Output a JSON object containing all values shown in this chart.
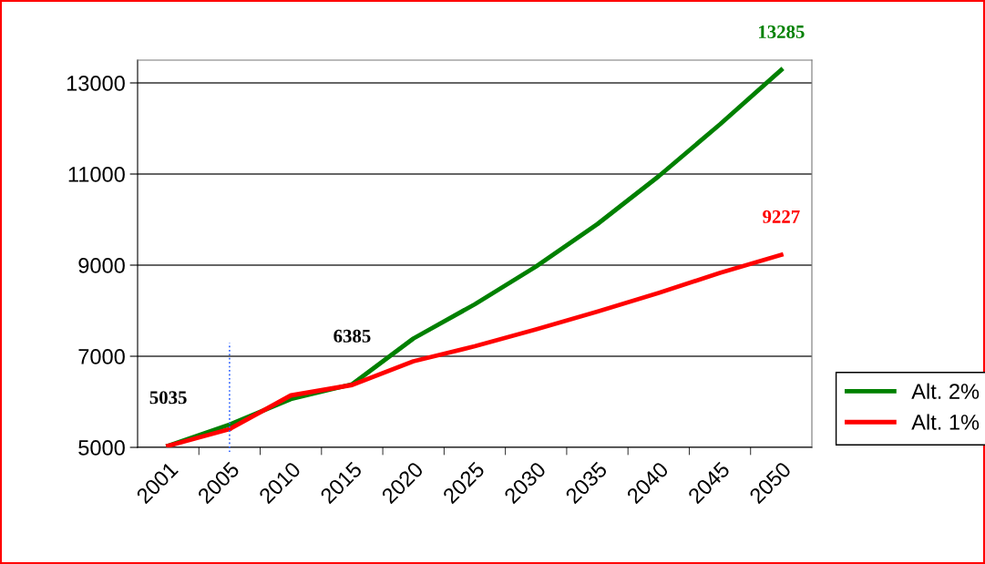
{
  "chart_data": {
    "type": "line",
    "categories": [
      "2001",
      "2005",
      "2010",
      "2015",
      "2020",
      "2025",
      "2030",
      "2035",
      "2040",
      "2045",
      "2050"
    ],
    "series": [
      {
        "name": "Alt. 2%",
        "color": "#008000",
        "values": [
          5035,
          5500,
          6060,
          6385,
          7390,
          8140,
          8970,
          9900,
          10950,
          12090,
          13285
        ],
        "value_labels": [
          null,
          null,
          null,
          null,
          null,
          null,
          null,
          null,
          null,
          null,
          "13285"
        ]
      },
      {
        "name": "Alt. 1%",
        "color": "#ff0000",
        "values": [
          5035,
          5400,
          6140,
          6370,
          6890,
          7220,
          7590,
          7980,
          8390,
          8830,
          9227
        ],
        "value_labels": [
          null,
          null,
          null,
          null,
          null,
          null,
          null,
          null,
          null,
          null,
          "9227"
        ]
      }
    ],
    "ylim": [
      5000,
      13500
    ],
    "yticks": [
      5000,
      7000,
      9000,
      11000,
      13000
    ],
    "grid": "y",
    "legend": "right",
    "marker": "none",
    "line_style": "solid",
    "annotations": [
      {
        "text": "5035",
        "x": "2001",
        "y": 5035
      },
      {
        "text": "6385",
        "x": "2015",
        "y": 6385
      }
    ],
    "ref_lines": [
      {
        "axis": "x",
        "value": "2005",
        "color": "#3366ff",
        "line_style": "dotted"
      }
    ]
  }
}
